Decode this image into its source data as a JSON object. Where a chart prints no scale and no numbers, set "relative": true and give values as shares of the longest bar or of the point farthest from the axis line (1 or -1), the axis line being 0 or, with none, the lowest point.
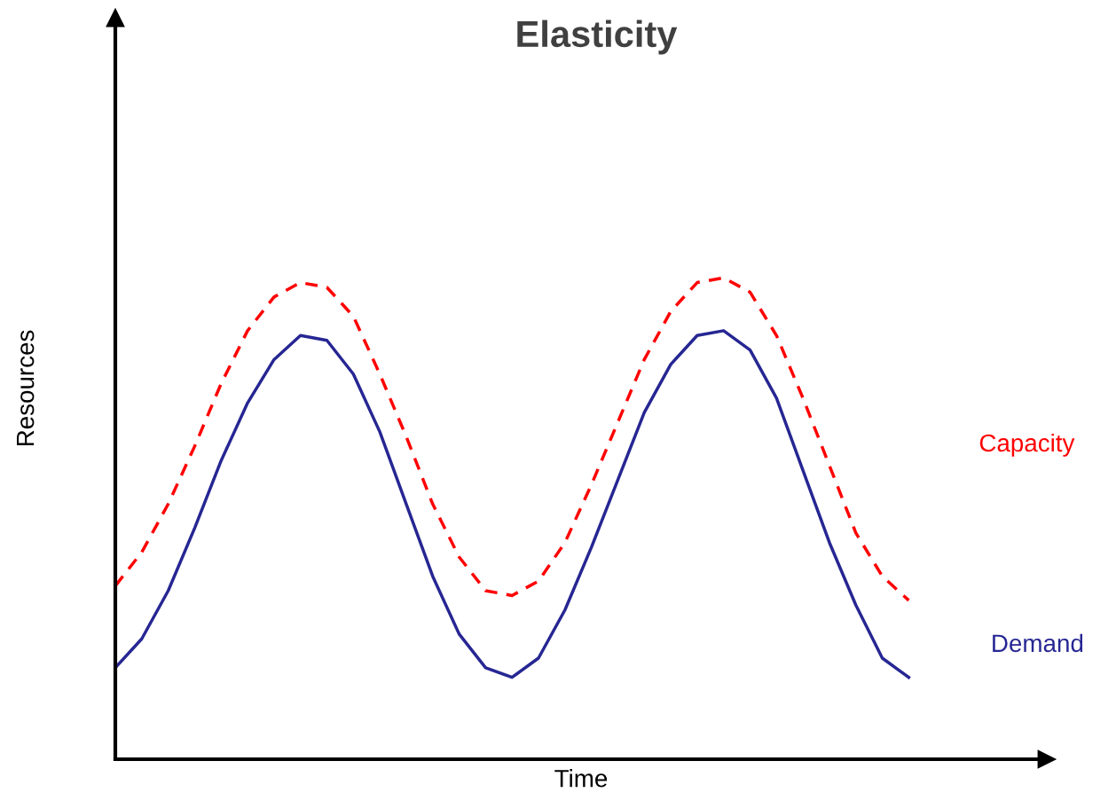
{
  "chart_data": {
    "type": "line",
    "title": "Elasticity",
    "xlabel": "Time",
    "ylabel": "Resources",
    "relative": true,
    "categories": [
      null,
      null,
      null,
      null,
      null,
      null,
      null,
      null,
      null,
      null,
      null,
      null,
      null,
      null,
      null,
      null,
      null,
      null,
      null,
      null,
      null,
      null,
      null,
      null,
      null,
      null,
      null,
      null,
      null,
      null,
      null
    ],
    "series": [
      {
        "name": "Capacity",
        "color": "#ff0000",
        "line_style": "dashed",
        "values": [
          0.36,
          0.43,
          0.53,
          0.65,
          0.78,
          0.89,
          0.96,
          0.99,
          0.98,
          0.92,
          0.8,
          0.67,
          0.53,
          0.42,
          0.35,
          0.34,
          0.37,
          0.45,
          0.57,
          0.7,
          0.83,
          0.93,
          0.99,
          1.0,
          0.97,
          0.88,
          0.75,
          0.61,
          0.47,
          0.38,
          0.33
        ]
      },
      {
        "name": "Demand",
        "color": "#262693",
        "line_style": "solid",
        "values": [
          0.19,
          0.25,
          0.35,
          0.48,
          0.62,
          0.74,
          0.83,
          0.88,
          0.87,
          0.8,
          0.68,
          0.53,
          0.38,
          0.26,
          0.19,
          0.17,
          0.21,
          0.31,
          0.44,
          0.58,
          0.72,
          0.82,
          0.88,
          0.89,
          0.85,
          0.75,
          0.6,
          0.45,
          0.32,
          0.21,
          0.17
        ]
      }
    ]
  }
}
